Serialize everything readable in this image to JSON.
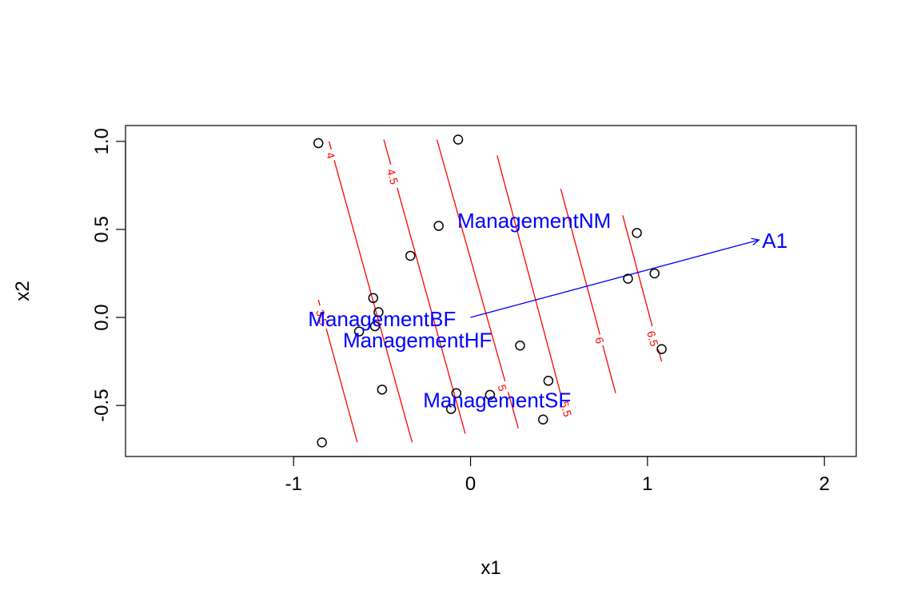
{
  "chart_data": {
    "type": "scatter",
    "xlabel": "x1",
    "ylabel": "x2",
    "xlim": [
      -1.95,
      2.18
    ],
    "ylim": [
      -0.79,
      1.09
    ],
    "x_ticks": [
      -1,
      0,
      1,
      2
    ],
    "x_tick_labels": [
      "-1",
      "0",
      "1",
      "2"
    ],
    "y_ticks": [
      -0.5,
      0.0,
      0.5,
      1.0
    ],
    "y_tick_labels": [
      "-0.5",
      "0.0",
      "0.5",
      "1.0"
    ],
    "points": [
      {
        "x": -0.86,
        "y": 0.99
      },
      {
        "x": -0.07,
        "y": 1.01
      },
      {
        "x": -0.18,
        "y": 0.52
      },
      {
        "x": -0.34,
        "y": 0.35
      },
      {
        "x": 0.94,
        "y": 0.48
      },
      {
        "x": 1.04,
        "y": 0.25
      },
      {
        "x": 0.89,
        "y": 0.22
      },
      {
        "x": -0.55,
        "y": 0.11
      },
      {
        "x": -0.52,
        "y": 0.03
      },
      {
        "x": -0.63,
        "y": -0.08
      },
      {
        "x": -0.54,
        "y": -0.05
      },
      {
        "x": 0.28,
        "y": -0.16
      },
      {
        "x": 1.08,
        "y": -0.18
      },
      {
        "x": 0.44,
        "y": -0.36
      },
      {
        "x": -0.5,
        "y": -0.41
      },
      {
        "x": -0.08,
        "y": -0.43
      },
      {
        "x": 0.11,
        "y": -0.44
      },
      {
        "x": -0.11,
        "y": -0.52
      },
      {
        "x": 0.41,
        "y": -0.58
      },
      {
        "x": -0.84,
        "y": -0.71
      }
    ],
    "contours": [
      {
        "level": "3.5",
        "x1": -0.86,
        "y1": 0.1,
        "x2": -0.64,
        "y2": -0.71,
        "label_x": -0.84,
        "label_y": 0.0
      },
      {
        "level": "4",
        "x1": -0.8,
        "y1": 1.0,
        "x2": -0.33,
        "y2": -0.71,
        "label_x": -0.79,
        "label_y": 0.92
      },
      {
        "level": "4.5",
        "x1": -0.49,
        "y1": 1.01,
        "x2": -0.03,
        "y2": -0.66,
        "label_x": -0.44,
        "label_y": 0.8
      },
      {
        "level": "5",
        "x1": -0.19,
        "y1": 1.01,
        "x2": 0.27,
        "y2": -0.63,
        "label_x": 0.18,
        "label_y": -0.4
      },
      {
        "level": "5.5",
        "x1": 0.15,
        "y1": 0.92,
        "x2": 0.54,
        "y2": -0.55,
        "label_x": 0.54,
        "label_y": -0.52
      },
      {
        "level": "6",
        "x1": 0.51,
        "y1": 0.73,
        "x2": 0.82,
        "y2": -0.43,
        "label_x": 0.73,
        "label_y": -0.13
      },
      {
        "level": "6.5",
        "x1": 0.86,
        "y1": 0.58,
        "x2": 1.08,
        "y2": -0.25,
        "label_x": 1.03,
        "label_y": -0.12
      }
    ],
    "vector": {
      "label": "A1",
      "x0": 0.0,
      "y0": 0.0,
      "x1": 1.63,
      "y1": 0.44
    },
    "factor_labels": [
      {
        "text": "ManagementNM",
        "x": 0.36,
        "y": 0.55
      },
      {
        "text": "ManagementBF",
        "x": -0.5,
        "y": -0.01
      },
      {
        "text": "ManagementHF",
        "x": -0.3,
        "y": -0.13
      },
      {
        "text": "ManagementSF",
        "x": 0.15,
        "y": -0.47
      }
    ],
    "colors": {
      "points": "#000000",
      "contours": "#ff0000",
      "vector": "#0000ff",
      "axes": "#000000"
    }
  }
}
